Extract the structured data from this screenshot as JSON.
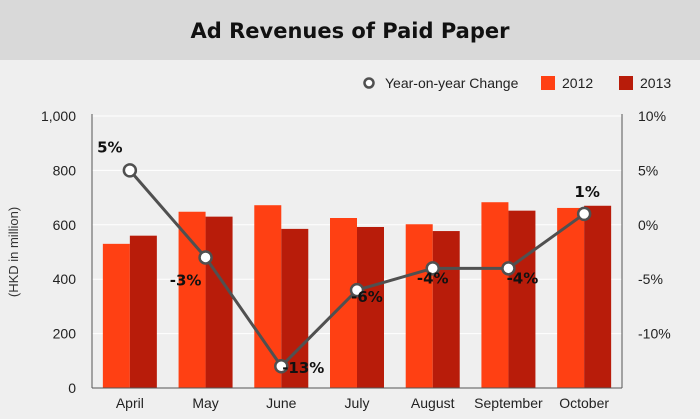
{
  "chart_data": {
    "type": "bar",
    "title": "Ad Revenues of Paid Paper",
    "ylabel": "(HKD in million)",
    "categories": [
      "April",
      "May",
      "June",
      "July",
      "August",
      "September",
      "October"
    ],
    "series": [
      {
        "name": "2012",
        "type": "bar",
        "color": "#ff4013",
        "values": [
          530,
          648,
          672,
          625,
          602,
          683,
          662
        ]
      },
      {
        "name": "2013",
        "type": "bar",
        "color": "#b81c0a",
        "values": [
          560,
          630,
          585,
          592,
          577,
          652,
          670
        ]
      },
      {
        "name": "Year-on-year Change",
        "type": "line",
        "axis": "right",
        "color": "#505050",
        "values": [
          5,
          -3,
          -13,
          -6,
          -4,
          -4,
          1
        ]
      }
    ],
    "data_labels": [
      "5%",
      "-3%",
      "-13%",
      "-6%",
      "-4%",
      "-4%",
      "1%"
    ],
    "ylim": [
      0,
      1000
    ],
    "yticks": [
      "0",
      "200",
      "400",
      "600",
      "800",
      "1,000"
    ],
    "y2lim": [
      -15,
      10
    ],
    "y2ticks": [
      "-10%",
      "-5%",
      "0%",
      "5%",
      "10%"
    ],
    "legend": "top-right",
    "grid": true
  }
}
